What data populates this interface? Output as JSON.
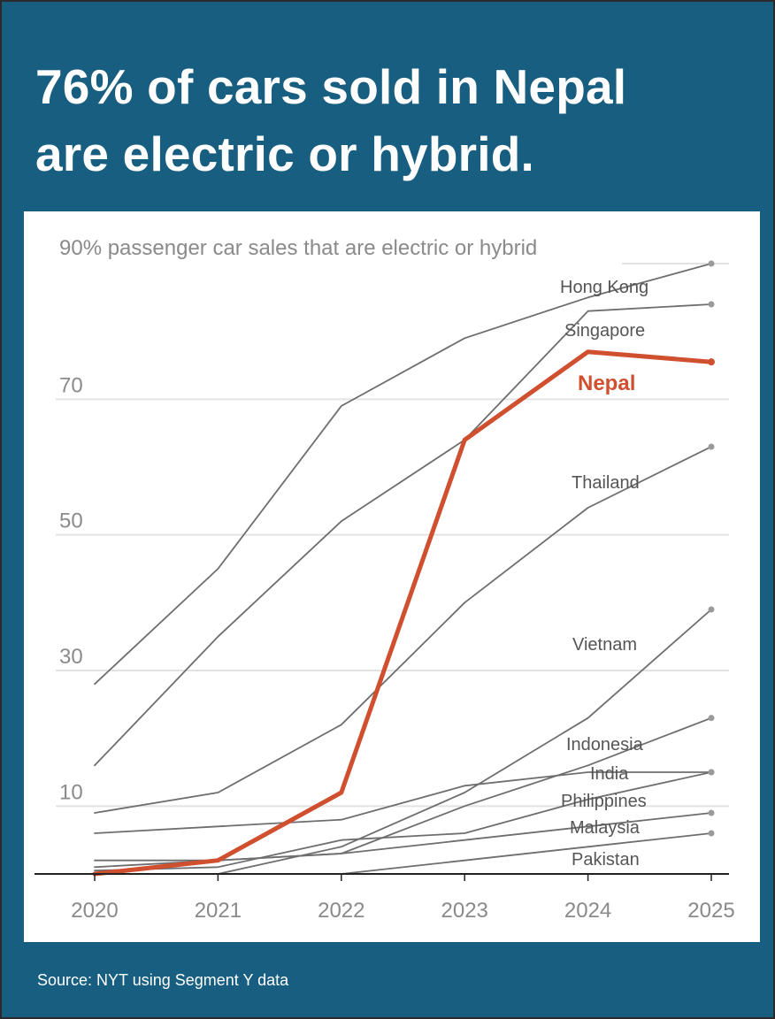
{
  "headline": {
    "line1": "76% of cars sold in Nepal",
    "line2": "are electric or hybrid."
  },
  "source": "Source: NYT using Segment Y data",
  "colors": {
    "background": "#175e80",
    "highlight": "#cf4f2f",
    "line": "#6e6e6e",
    "grid": "#e3e3e3"
  },
  "chart_data": {
    "type": "line",
    "title": "76% of cars sold in Nepal are electric or hybrid.",
    "ylabel": "90% passenger car sales that are electric or hybrid",
    "x": [
      "2020",
      "2021",
      "2022",
      "2023",
      "2024",
      "2025"
    ],
    "ylim": [
      0,
      90
    ],
    "yticks": [
      "10",
      "30",
      "50",
      "70"
    ],
    "ytick_values": [
      10,
      30,
      50,
      70
    ],
    "series": [
      {
        "name": "Hong Kong",
        "label": "Hong Kong",
        "values": [
          28,
          45,
          69,
          79,
          85,
          90
        ],
        "highlight": false
      },
      {
        "name": "Singapore",
        "label": "Singapore",
        "values": [
          16,
          35,
          52,
          64,
          83,
          84
        ],
        "highlight": false
      },
      {
        "name": "Nepal",
        "label": "Nepal",
        "values": [
          0,
          2,
          12,
          64,
          77,
          75.5
        ],
        "highlight": true
      },
      {
        "name": "Thailand",
        "label": "Thailand",
        "values": [
          9,
          12,
          22,
          40,
          54,
          63
        ],
        "highlight": false
      },
      {
        "name": "Vietnam",
        "label": "Vietnam",
        "values": [
          null,
          0,
          4,
          12,
          23,
          39
        ],
        "highlight": false
      },
      {
        "name": "Indonesia",
        "label": "Indonesia",
        "values": [
          1,
          2,
          3,
          10,
          16,
          23
        ],
        "highlight": false
      },
      {
        "name": "India",
        "label": "India",
        "values": [
          6,
          7,
          8,
          13,
          15,
          15
        ],
        "highlight": false
      },
      {
        "name": "Philippines",
        "label": "Philippines",
        "values": [
          0.5,
          1,
          5,
          6,
          11,
          15
        ],
        "highlight": false
      },
      {
        "name": "Malaysia",
        "label": "Malaysia",
        "values": [
          2,
          2,
          3,
          5,
          7,
          9
        ],
        "highlight": false
      },
      {
        "name": "Pakistan",
        "label": "Pakistan",
        "values": [
          null,
          null,
          0,
          2,
          4,
          6
        ],
        "highlight": false
      }
    ]
  }
}
